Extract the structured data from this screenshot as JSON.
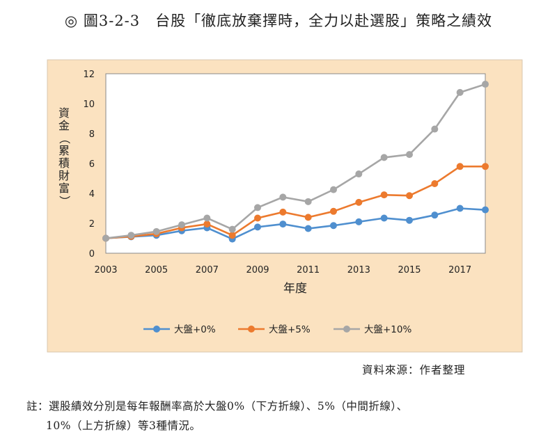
{
  "title": "◎ 圖3-2-3　台股「徹底放棄擇時，全力以赴選股」策略之績效",
  "source": "資料來源：作者整理",
  "note": {
    "line1": "註：選股績效分別是每年報酬率高於大盤0%（下方折線）、5%（中間折線）、",
    "line2": "10%（上方折線）等3種情況。"
  },
  "chart_data": {
    "type": "line",
    "xlabel": "年度",
    "ylabel": "資金（累積財富）",
    "x": [
      2003,
      2004,
      2005,
      2006,
      2007,
      2008,
      2009,
      2010,
      2011,
      2012,
      2013,
      2014,
      2015,
      2016,
      2017,
      2018
    ],
    "xticks": [
      2003,
      2005,
      2007,
      2009,
      2011,
      2013,
      2015,
      2017
    ],
    "ylim": [
      0,
      12
    ],
    "yticks": [
      0,
      2,
      4,
      6,
      8,
      10,
      12
    ],
    "grid": "vertical-none",
    "legend": "bottom",
    "series": [
      {
        "name": "大盤+0%",
        "color": "#4f8fcf",
        "values": [
          1.0,
          1.1,
          1.2,
          1.5,
          1.7,
          0.95,
          1.75,
          1.95,
          1.65,
          1.85,
          2.1,
          2.35,
          2.2,
          2.55,
          3.0,
          2.9
        ]
      },
      {
        "name": "大盤+5%",
        "color": "#ec7a2e",
        "values": [
          1.0,
          1.12,
          1.3,
          1.7,
          1.95,
          1.2,
          2.35,
          2.75,
          2.4,
          2.8,
          3.4,
          3.9,
          3.85,
          4.65,
          5.8,
          5.8
        ]
      },
      {
        "name": "大盤+10%",
        "color": "#a6a6a6",
        "values": [
          1.0,
          1.2,
          1.45,
          1.9,
          2.35,
          1.6,
          3.05,
          3.75,
          3.45,
          4.25,
          5.3,
          6.4,
          6.6,
          8.3,
          10.75,
          11.3
        ]
      }
    ]
  }
}
